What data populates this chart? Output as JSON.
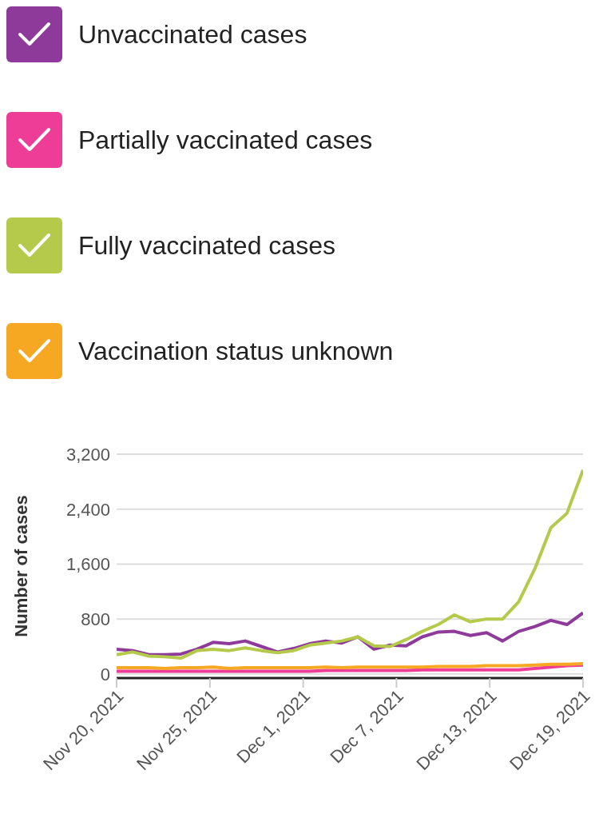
{
  "chart_data": {
    "type": "line",
    "ylabel": "Number of cases",
    "legend": "top",
    "grid": "y",
    "marker": "none",
    "line_style": "solid",
    "x": [
      "2021-11-20",
      "2021-11-21",
      "2021-11-22",
      "2021-11-23",
      "2021-11-24",
      "2021-11-25",
      "2021-11-26",
      "2021-11-27",
      "2021-11-28",
      "2021-11-29",
      "2021-11-30",
      "2021-12-01",
      "2021-12-02",
      "2021-12-03",
      "2021-12-04",
      "2021-12-05",
      "2021-12-06",
      "2021-12-07",
      "2021-12-08",
      "2021-12-09",
      "2021-12-10",
      "2021-12-11",
      "2021-12-12",
      "2021-12-13",
      "2021-12-14",
      "2021-12-15",
      "2021-12-16",
      "2021-12-17",
      "2021-12-18",
      "2021-12-19"
    ],
    "xlim": [
      "2021-11-20",
      "2021-12-19"
    ],
    "xticks": [
      {
        "value": "2021-11-20",
        "label": "Nov 20, 2021"
      },
      {
        "value": "2021-11-25T19:12",
        "label": "Nov 25, 2021"
      },
      {
        "value": "2021-12-01T14:24",
        "label": "Dec 1, 2021"
      },
      {
        "value": "2021-12-07T09:36",
        "label": "Dec 7, 2021"
      },
      {
        "value": "2021-12-13T04:48",
        "label": "Dec 13, 2021"
      },
      {
        "value": "2021-12-19",
        "label": "Dec 19, 2021"
      }
    ],
    "ylim": [
      -60,
      3200
    ],
    "yticks": [
      {
        "value": 0,
        "label": "0"
      },
      {
        "value": 800,
        "label": "800"
      },
      {
        "value": 1600,
        "label": "1,600"
      },
      {
        "value": 2400,
        "label": "2,400"
      },
      {
        "value": 3200,
        "label": "3,200"
      }
    ],
    "series": [
      {
        "name": "Unvaccinated cases",
        "color": "#8e3a9a",
        "values": [
          360,
          340,
          280,
          280,
          290,
          360,
          460,
          440,
          480,
          400,
          320,
          370,
          440,
          480,
          450,
          540,
          360,
          420,
          410,
          540,
          610,
          620,
          560,
          600,
          480,
          620,
          690,
          780,
          720,
          890
        ]
      },
      {
        "name": "Partially vaccinated cases",
        "color": "#ee3d96",
        "values": [
          40,
          40,
          40,
          40,
          40,
          40,
          40,
          40,
          40,
          40,
          40,
          40,
          40,
          50,
          50,
          50,
          50,
          50,
          50,
          60,
          60,
          60,
          60,
          60,
          60,
          60,
          80,
          100,
          120,
          130
        ]
      },
      {
        "name": "Fully vaccinated cases",
        "color": "#b5c94a",
        "values": [
          280,
          320,
          260,
          250,
          230,
          340,
          360,
          340,
          380,
          340,
          310,
          340,
          420,
          450,
          480,
          540,
          410,
          400,
          500,
          620,
          720,
          860,
          760,
          800,
          800,
          1050,
          1530,
          2130,
          2340,
          2970
        ]
      },
      {
        "name": "Vaccination status unknown",
        "color": "#f7a823",
        "values": [
          90,
          90,
          90,
          80,
          90,
          90,
          100,
          80,
          90,
          90,
          90,
          90,
          90,
          100,
          90,
          100,
          100,
          100,
          100,
          100,
          110,
          110,
          110,
          120,
          120,
          120,
          130,
          140,
          140,
          150
        ]
      }
    ]
  }
}
